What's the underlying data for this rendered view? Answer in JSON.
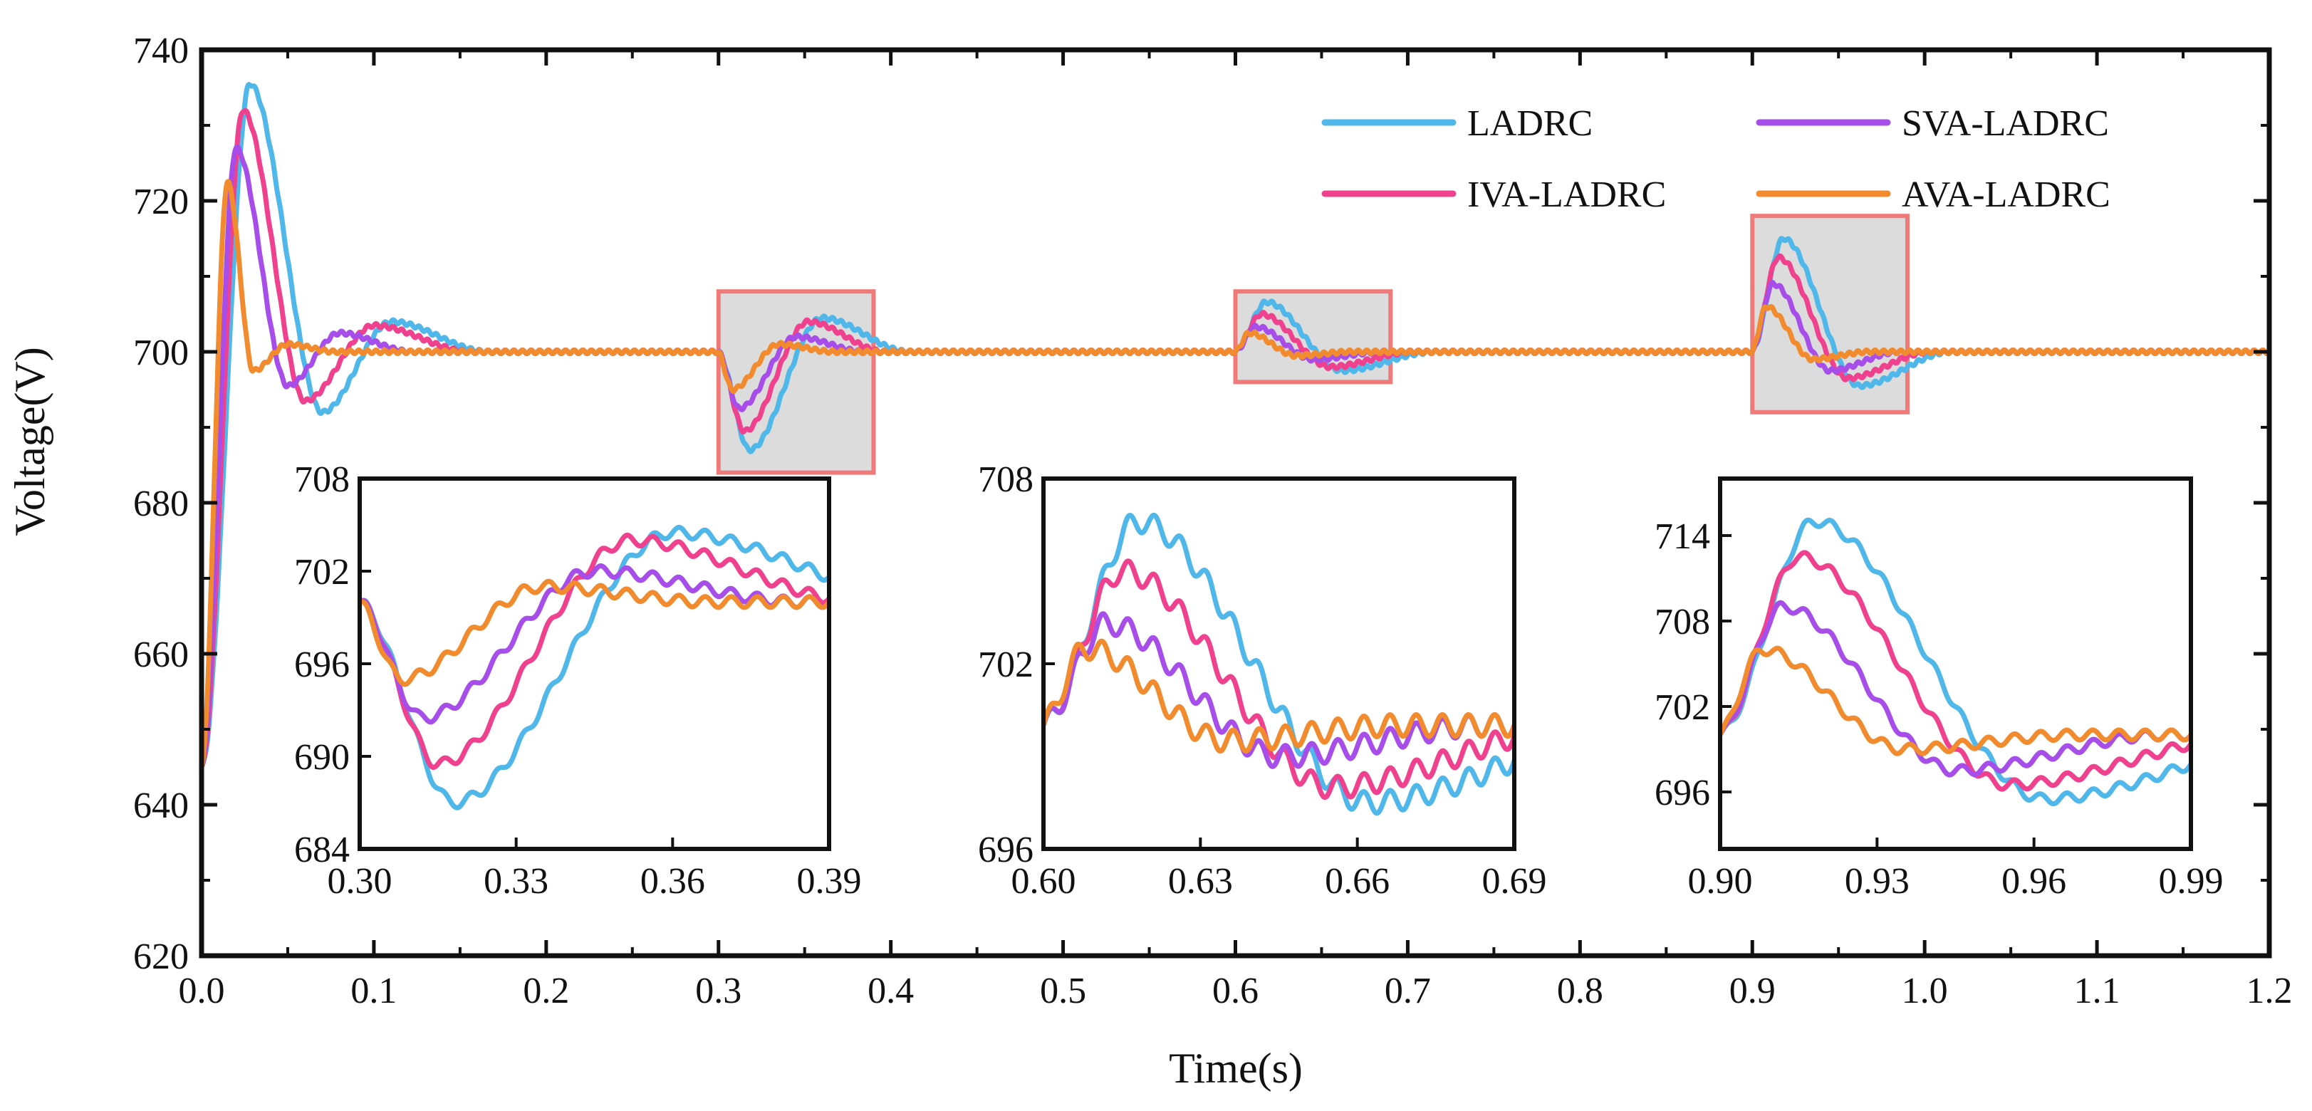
{
  "chart_data": {
    "type": "line",
    "xlabel": "Time(s)",
    "ylabel": "Voltage(V)",
    "xlim": [
      0.0,
      1.2
    ],
    "ylim": [
      620,
      740
    ],
    "xticks": [
      "0.0",
      "0.1",
      "0.2",
      "0.3",
      "0.4",
      "0.5",
      "0.6",
      "0.7",
      "0.8",
      "0.9",
      "1.0",
      "1.1",
      "1.2"
    ],
    "yticks": [
      "620",
      "640",
      "660",
      "680",
      "700",
      "720",
      "740"
    ],
    "steady_state": 700,
    "series": [
      {
        "name": "LADRC",
        "color": "#4fb7ea",
        "startup": {
          "peak": 735.5,
          "peak_t": 0.028,
          "undershoot": 692,
          "undershoot_t": 0.07,
          "second_peak": 704,
          "second_peak_t": 0.11
        },
        "events": [
          {
            "t": 0.3,
            "min": 687.0,
            "min_t": 0.318,
            "max": 704.5,
            "max_t": 0.36
          },
          {
            "t": 0.6,
            "max": 706.6,
            "max_t": 0.618,
            "min": 697.5,
            "min_t": 0.662
          },
          {
            "t": 0.9,
            "max": 715.0,
            "max_t": 0.918,
            "min": 695.5,
            "min_t": 0.962
          }
        ]
      },
      {
        "name": "SVA-LADRC",
        "color": "#a64dea",
        "startup": {
          "peak": 727,
          "peak_t": 0.02,
          "undershoot": 695.5,
          "undershoot_t": 0.05,
          "second_peak": 702.5,
          "second_peak_t": 0.08
        },
        "events": [
          {
            "t": 0.3,
            "min": 692.5,
            "min_t": 0.312,
            "max": 702.0,
            "max_t": 0.345
          },
          {
            "t": 0.6,
            "max": 703.3,
            "max_t": 0.612,
            "min": 699.0,
            "min_t": 0.645
          },
          {
            "t": 0.9,
            "max": 709.0,
            "max_t": 0.912,
            "min": 697.5,
            "min_t": 0.945
          }
        ]
      },
      {
        "name": "IVA-LADRC",
        "color": "#f0418f",
        "startup": {
          "peak": 732,
          "peak_t": 0.024,
          "undershoot": 693.5,
          "undershoot_t": 0.06,
          "second_peak": 703.5,
          "second_peak_t": 0.1
        },
        "events": [
          {
            "t": 0.3,
            "min": 689.5,
            "min_t": 0.315,
            "max": 704.0,
            "max_t": 0.352
          },
          {
            "t": 0.6,
            "max": 705.0,
            "max_t": 0.615,
            "min": 698.0,
            "min_t": 0.655
          },
          {
            "t": 0.9,
            "max": 712.5,
            "max_t": 0.915,
            "min": 696.5,
            "min_t": 0.955
          }
        ]
      },
      {
        "name": "AVA-LADRC",
        "color": "#f28a2e",
        "startup": {
          "peak": 722.5,
          "peak_t": 0.015,
          "undershoot": 697.5,
          "undershoot_t": 0.03,
          "second_peak": 701,
          "second_peak_t": 0.05
        },
        "events": [
          {
            "t": 0.3,
            "min": 695.0,
            "min_t": 0.308,
            "max": 701.0,
            "max_t": 0.335
          },
          {
            "t": 0.6,
            "max": 702.5,
            "max_t": 0.608,
            "min": 699.5,
            "min_t": 0.635
          },
          {
            "t": 0.9,
            "max": 706.0,
            "max_t": 0.908,
            "min": 699.0,
            "min_t": 0.935
          }
        ]
      }
    ],
    "highlight_boxes": [
      {
        "xmin": 0.3,
        "xmax": 0.39,
        "ymin": 684,
        "ymax": 708
      },
      {
        "xmin": 0.6,
        "xmax": 0.69,
        "ymin": 696,
        "ymax": 708
      },
      {
        "xmin": 0.9,
        "xmax": 0.99,
        "ymin": 692,
        "ymax": 718
      }
    ],
    "insets": [
      {
        "xlim": [
          0.3,
          0.39
        ],
        "ylim": [
          684,
          708
        ],
        "xticks": [
          "0.30",
          "0.33",
          "0.36",
          "0.39"
        ],
        "yticks": [
          "684",
          "690",
          "696",
          "702",
          "708"
        ],
        "event_index": 0
      },
      {
        "xlim": [
          0.6,
          0.69
        ],
        "ylim": [
          696,
          708
        ],
        "xticks": [
          "0.60",
          "0.63",
          "0.66",
          "0.69"
        ],
        "yticks": [
          "696",
          "702",
          "708"
        ],
        "event_index": 1
      },
      {
        "xlim": [
          0.9,
          0.99
        ],
        "ylim": [
          692,
          718
        ],
        "xticks": [
          "0.90",
          "0.93",
          "0.96",
          "0.99"
        ],
        "yticks": [
          "696",
          "702",
          "708",
          "714"
        ],
        "event_index": 2
      }
    ],
    "legend": {
      "position": "top-right",
      "columns": 2,
      "order": [
        "LADRC",
        "SVA-LADRC",
        "IVA-LADRC",
        "AVA-LADRC"
      ]
    }
  }
}
